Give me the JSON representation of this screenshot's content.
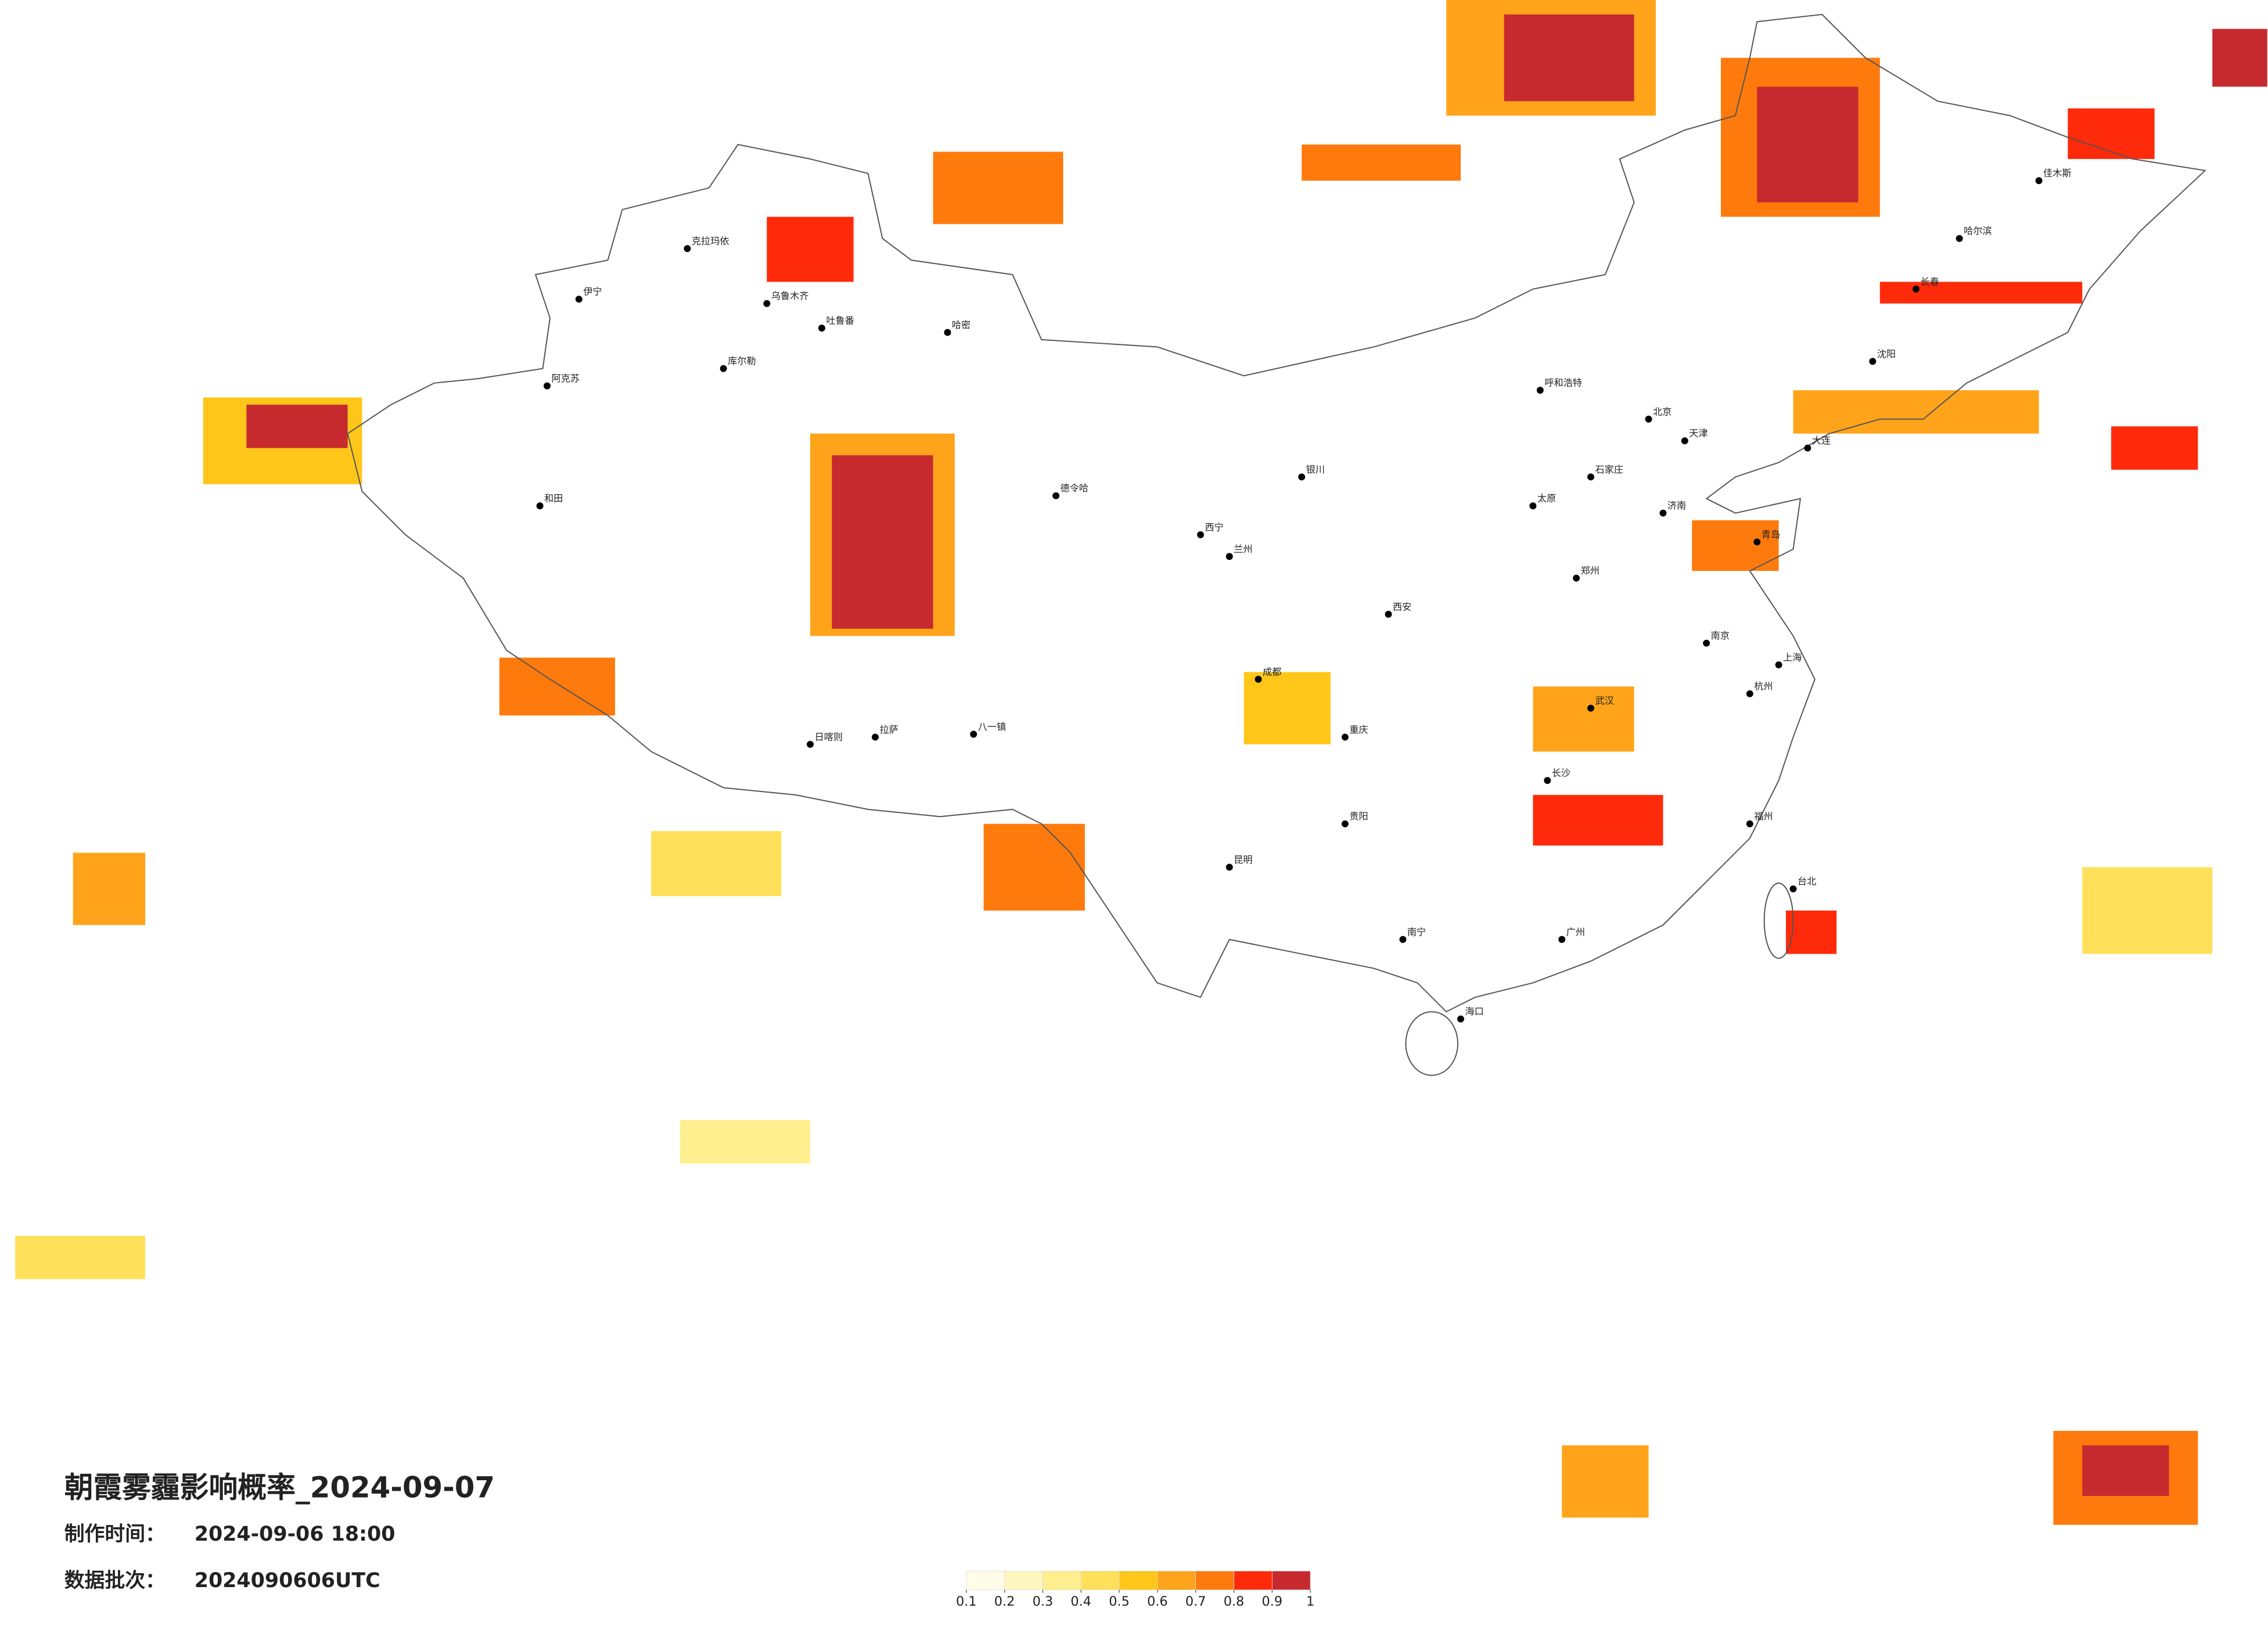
{
  "title": "朝霞雾霾影响概率_2024-09-07",
  "production_time": {
    "label": "制作时间：",
    "value": "2024-09-06 18:00"
  },
  "data_batch": {
    "label": "数据批次：",
    "value": "2024090606UTC"
  },
  "legend": {
    "colors": [
      "#fffce8",
      "#fff6c0",
      "#ffef8e",
      "#ffe05a",
      "#ffc61a",
      "#ffa41a",
      "#ff7a0d",
      "#ff2a0a",
      "#c62a2f"
    ],
    "ticks": [
      0.1,
      0.2,
      0.3,
      0.4,
      0.5,
      0.6,
      0.7,
      0.8,
      0.9,
      1
    ]
  },
  "cities": [
    "克拉玛依",
    "伊宁",
    "乌鲁木齐",
    "吐鲁番",
    "哈密",
    "库尔勒",
    "阿克苏",
    "和田",
    "德令哈",
    "西宁",
    "拉萨",
    "日喀则",
    "八一镇",
    "呼和浩特",
    "北京",
    "天津",
    "石家庄",
    "太原",
    "济南",
    "郑州",
    "西安",
    "兰州",
    "银川",
    "成都",
    "重庆",
    "武汉",
    "长沙",
    "南京",
    "上海",
    "杭州",
    "福州",
    "广州",
    "南宁",
    "昆明",
    "贵阳",
    "海口",
    "台北",
    "哈尔滨",
    "长春",
    "沈阳",
    "大连",
    "青岛",
    "佳木斯"
  ]
}
